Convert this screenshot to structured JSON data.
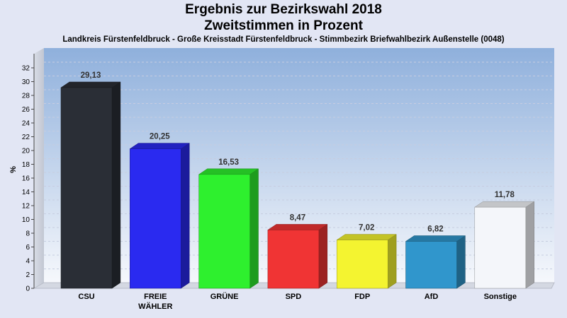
{
  "chart_data": {
    "type": "bar",
    "title": "Ergebnis zur Bezirkswahl 2018",
    "title_line2": "Zweitstimmen in Prozent",
    "subtitle": "Landkreis Fürstenfeldbruck - Große Kreisstadt Fürstenfeldbruck - Stimmbezirk Briefwahlbezirk Außenstelle (0048)",
    "ylabel": "%",
    "xlabel": "",
    "ylim": [
      0,
      32
    ],
    "yticks": [
      0,
      2,
      4,
      6,
      8,
      10,
      12,
      14,
      16,
      18,
      20,
      22,
      24,
      26,
      28,
      30,
      32
    ],
    "grid": true,
    "categories": [
      [
        "CSU"
      ],
      [
        "FREIE",
        "WÄHLER"
      ],
      [
        "GRÜNE"
      ],
      [
        "SPD"
      ],
      [
        "FDP"
      ],
      [
        "AfD"
      ],
      [
        "Sonstige"
      ]
    ],
    "values": [
      29.13,
      20.25,
      16.53,
      8.47,
      7.02,
      6.82,
      11.78
    ],
    "value_labels": [
      "29,13",
      "20,25",
      "16,53",
      "8,47",
      "7,02",
      "6,82",
      "11,78"
    ],
    "colors": [
      "#2a2e36",
      "#2a2af0",
      "#2ef02e",
      "#f03434",
      "#f4f430",
      "#3096cc",
      "#f4f6fa"
    ]
  }
}
